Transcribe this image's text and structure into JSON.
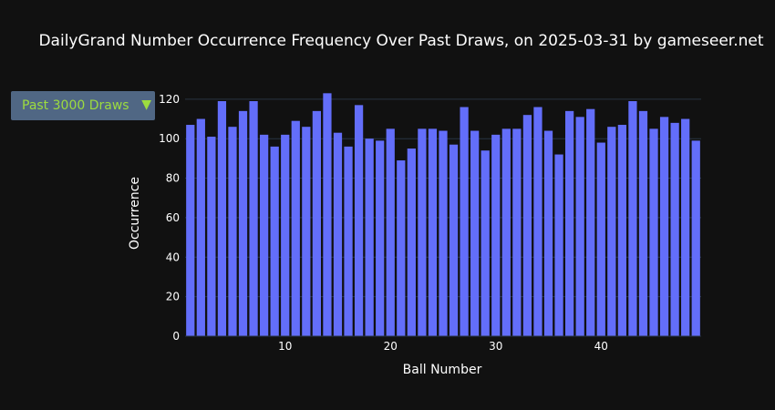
{
  "title": "DailyGrand Number Occurrence Frequency Over Past Draws, on 2025-03-31 by gameseer.net",
  "dropdown": {
    "selected": "Past 3000 Draws",
    "arrow_icon": "triangle-down-icon"
  },
  "colors": {
    "background": "#111111",
    "bar": "#636efa",
    "grid": "#283442",
    "accent": "#9ddc3f"
  },
  "chart_data": {
    "type": "bar",
    "title": "DailyGrand Number Occurrence Frequency Over Past Draws, on 2025-03-31 by gameseer.net",
    "xlabel": "Ball Number",
    "ylabel": "Occurrence",
    "x": [
      1,
      2,
      3,
      4,
      5,
      6,
      7,
      8,
      9,
      10,
      11,
      12,
      13,
      14,
      15,
      16,
      17,
      18,
      19,
      20,
      21,
      22,
      23,
      24,
      25,
      26,
      27,
      28,
      29,
      30,
      31,
      32,
      33,
      34,
      35,
      36,
      37,
      38,
      39,
      40,
      41,
      42,
      43,
      44,
      45,
      46,
      47,
      48,
      49
    ],
    "values": [
      107,
      110,
      101,
      119,
      106,
      114,
      119,
      102,
      96,
      102,
      109,
      106,
      114,
      123,
      103,
      96,
      117,
      100,
      99,
      105,
      89,
      95,
      105,
      105,
      104,
      97,
      116,
      104,
      94,
      102,
      105,
      105,
      112,
      116,
      104,
      92,
      114,
      111,
      115,
      98,
      106,
      107,
      119,
      114,
      105,
      111,
      108,
      110,
      99
    ],
    "xticks": [
      10,
      20,
      30,
      40
    ],
    "yticks": [
      0,
      20,
      40,
      60,
      80,
      100,
      120
    ],
    "xlim": [
      0.5,
      49.5
    ],
    "ylim": [
      0,
      125
    ],
    "grid": true
  }
}
